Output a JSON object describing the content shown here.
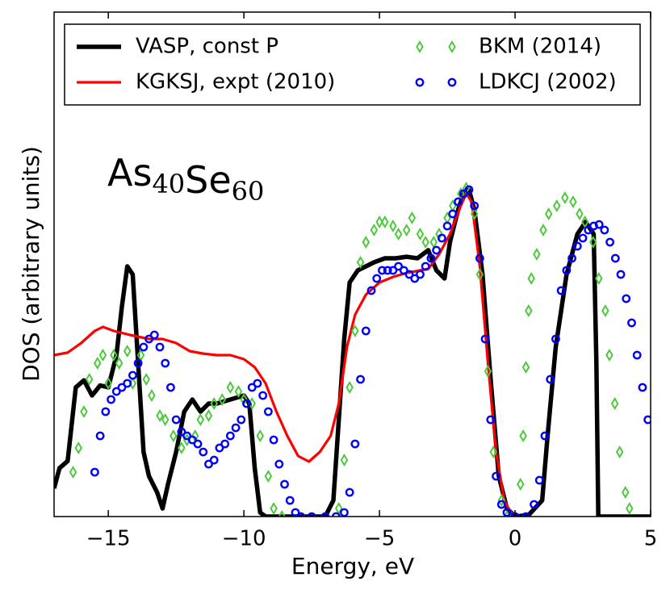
{
  "chart_data": {
    "type": "line",
    "xlabel": "Energy, eV",
    "ylabel": "DOS (arbitrary units)",
    "annotation": [
      {
        "text": "As",
        "sub": "40"
      },
      {
        "text": "Se",
        "sub": "60"
      }
    ],
    "xlim": [
      -17,
      5
    ],
    "ylim": [
      0,
      100
    ],
    "xticks": [
      {
        "value": -15,
        "label": "−15"
      },
      {
        "value": -10,
        "label": "−10"
      },
      {
        "value": -5,
        "label": "−5"
      },
      0,
      5
    ],
    "legend": "upper center",
    "legend_columns": 2,
    "series": [
      {
        "name": "VASP, const P",
        "color": "#000000",
        "marker": "line",
        "x": [
          -17,
          -16.8,
          -16.5,
          -16.2,
          -15.9,
          -15.6,
          -15.3,
          -15,
          -14.7,
          -14.5,
          -14.3,
          -14.1,
          -13.9,
          -13.7,
          -13.5,
          -13.2,
          -13,
          -12.8,
          -12.5,
          -12.2,
          -11.9,
          -11.6,
          -11.3,
          -11,
          -10.5,
          -10,
          -9.8,
          -9.6,
          -9.4,
          -9.2,
          -7,
          -6.7,
          -6.5,
          -6.3,
          -6.1,
          -5.8,
          -5.5,
          -5.2,
          -4.8,
          -4.4,
          -4,
          -3.6,
          -3.2,
          -2.9,
          -2.6,
          -2.4,
          -2.1,
          -1.9,
          -1.7,
          -1.5,
          -1.2,
          -0.9,
          -0.6,
          -0.3,
          0,
          0.5,
          1,
          1.2,
          1.5,
          1.9,
          2.3,
          2.6,
          2.9,
          3,
          3.07,
          5
        ],
        "values": [
          5.6,
          9.6,
          11,
          25.6,
          27,
          24,
          26,
          25.6,
          32,
          41.6,
          49.6,
          48,
          30.4,
          12.8,
          8,
          4.8,
          1.6,
          6.4,
          12.8,
          20.8,
          23.2,
          20.8,
          22.4,
          22.4,
          23.2,
          24,
          22.4,
          9.6,
          0.8,
          0,
          0,
          3.2,
          19.2,
          35.2,
          46.4,
          48.8,
          49.6,
          50.4,
          51.2,
          51.2,
          51.5,
          51.2,
          52.8,
          48.8,
          47.2,
          54.4,
          60.8,
          64,
          64.8,
          60.8,
          48,
          27.2,
          8,
          1.6,
          0,
          0.3,
          3.2,
          16,
          33.6,
          48,
          56,
          58.4,
          56,
          30.4,
          0,
          0
        ]
      },
      {
        "name": "KGKSJ, expt (2010)",
        "color": "#ff0000",
        "marker": "line",
        "x": [
          -17,
          -16.5,
          -16,
          -15.5,
          -15.2,
          -14.8,
          -14.2,
          -13.5,
          -13,
          -12.5,
          -12,
          -11.5,
          -11,
          -10.5,
          -10,
          -9.6,
          -9.2,
          -8.8,
          -8.4,
          -8,
          -7.6,
          -7.2,
          -6.8,
          -6.5,
          -6.2,
          -5.9,
          -5.5,
          -5,
          -4.5,
          -4,
          -3.5,
          -3.2,
          -2.8,
          -2.4,
          -2,
          -1.8,
          -1.6,
          -1.3,
          -1,
          -0.7,
          -0.4,
          -0.1
        ],
        "values": [
          32,
          32.5,
          34.4,
          36.8,
          37.6,
          36.8,
          36,
          35.2,
          35.2,
          34.4,
          32.8,
          32.3,
          32,
          32,
          31.2,
          29.6,
          26.4,
          20.8,
          16,
          12,
          10.9,
          12.8,
          16,
          22.4,
          33.6,
          40,
          44,
          46.4,
          47.5,
          48.3,
          48.8,
          49.1,
          52,
          56,
          61.6,
          64,
          62.4,
          49.6,
          30.4,
          12.8,
          3.2,
          0.3
        ]
      },
      {
        "name": "BKM (2014)",
        "color": "#4ec83c",
        "marker": "diamond",
        "x": [
          -16.3,
          -16.1,
          -15.9,
          -15.7,
          -15.4,
          -15.2,
          -15,
          -14.8,
          -14.6,
          -14.3,
          -14.1,
          -13.8,
          -13.6,
          -13.4,
          -13.1,
          -12.9,
          -12.6,
          -12.3,
          -12.1,
          -11.8,
          -11.6,
          -11.3,
          -11.1,
          -10.8,
          -10.5,
          -10.2,
          -10,
          -9.7,
          -9.4,
          -9.1,
          -8.9,
          -8.6,
          -6.5,
          -6.3,
          -6.1,
          -5.9,
          -5.7,
          -5.5,
          -5.2,
          -5,
          -4.8,
          -4.5,
          -4.3,
          -4,
          -3.8,
          -3.5,
          -3.3,
          -3,
          -2.8,
          -2.5,
          -2.3,
          -2,
          -1.8,
          -1.5,
          -1.3,
          -1,
          -0.8,
          -0.5,
          -0.3,
          0.2,
          0.3,
          0.4,
          0.5,
          0.6,
          0.8,
          1.04,
          1.24,
          1.54,
          1.84,
          2.14,
          2.38,
          2.58,
          2.88,
          3.09,
          3.33,
          3.48,
          3.68,
          3.86,
          4.07,
          4.22
        ],
        "values": [
          8.8,
          13.6,
          20.8,
          27.2,
          30.4,
          32,
          26.4,
          32,
          30.4,
          32.8,
          26.4,
          32,
          27.2,
          24,
          20,
          19.2,
          16,
          13.6,
          15.2,
          16,
          19.2,
          20,
          22.4,
          23.2,
          25.6,
          24.8,
          23.2,
          22.4,
          16,
          8,
          1.6,
          0,
          1.6,
          11.2,
          25.6,
          36.8,
          50.4,
          54.4,
          56.8,
          58.4,
          58.4,
          57.6,
          56,
          56.8,
          59.2,
          56,
          54.4,
          54.4,
          56,
          59.2,
          61.6,
          64,
          65.1,
          60,
          48,
          28.8,
          12.8,
          3.2,
          0,
          6.4,
          16,
          29.6,
          40.8,
          47.2,
          52,
          56.8,
          60,
          61.6,
          63.2,
          62.4,
          60,
          58.4,
          54.4,
          47.2,
          40.8,
          32,
          22.4,
          12.8,
          4.8,
          1.6
        ]
      },
      {
        "name": "LDKCJ (2002)",
        "color": "#0000ff",
        "marker": "circle",
        "x": [
          -15.5,
          -15.3,
          -15.1,
          -14.9,
          -14.7,
          -14.5,
          -14.3,
          -14.1,
          -13.9,
          -13.7,
          -13.5,
          -13.3,
          -13.1,
          -12.9,
          -12.7,
          -12.5,
          -12.3,
          -12.1,
          -11.9,
          -11.7,
          -11.5,
          -11.3,
          -11.1,
          -10.9,
          -10.7,
          -10.5,
          -10.3,
          -10.1,
          -9.9,
          -9.7,
          -9.5,
          -9.3,
          -9.1,
          -8.9,
          -8.7,
          -8.5,
          -8.3,
          -8.1,
          -7.9,
          -7.5,
          -7,
          -6.6,
          -6.3,
          -6.1,
          -5.9,
          -5.7,
          -5.5,
          -5.3,
          -5.1,
          -4.9,
          -4.7,
          -4.5,
          -4.3,
          -4.1,
          -3.9,
          -3.7,
          -3.5,
          -3.3,
          -3.1,
          -2.9,
          -2.7,
          -2.5,
          -2.3,
          -2.1,
          -1.9,
          -1.7,
          -1.5,
          -1.3,
          -1.1,
          -0.9,
          -0.7,
          -0.5,
          -0.3,
          0,
          0.4,
          0.7,
          0.9,
          1.1,
          1.3,
          1.5,
          1.7,
          1.9,
          2.1,
          2.3,
          2.5,
          2.7,
          2.9,
          3.1,
          3.3,
          3.5,
          3.7,
          3.9,
          4.1,
          4.3,
          4.5,
          4.7,
          4.9
        ],
        "values": [
          8.8,
          16,
          20.8,
          23.2,
          24.8,
          25.6,
          26.4,
          28,
          30.4,
          33.6,
          35.2,
          36,
          33.6,
          30.4,
          25.6,
          19.2,
          16.8,
          16,
          15.2,
          14.4,
          12.8,
          10.4,
          11.2,
          13.6,
          14.4,
          16,
          17.6,
          19.2,
          22.4,
          25.6,
          26.4,
          24,
          20.8,
          15.2,
          10.4,
          6.4,
          3.2,
          0.8,
          0,
          0,
          0,
          0,
          0.8,
          4.8,
          14.4,
          27.2,
          36.8,
          44.8,
          47.2,
          48.8,
          48.8,
          48.8,
          49.6,
          48.8,
          48,
          47.2,
          48,
          49.6,
          51.2,
          52.8,
          55.2,
          57.6,
          60,
          62.4,
          64,
          64.8,
          61.6,
          51.2,
          35.2,
          19.2,
          8,
          2.4,
          0.8,
          0,
          0,
          2.4,
          7.2,
          16,
          27.2,
          35.2,
          44.8,
          48.8,
          51.2,
          53.6,
          55.2,
          56.8,
          57.6,
          57.9,
          56.8,
          54.4,
          51.2,
          48,
          43.2,
          38.4,
          32,
          25.6,
          19.2
        ]
      }
    ]
  }
}
